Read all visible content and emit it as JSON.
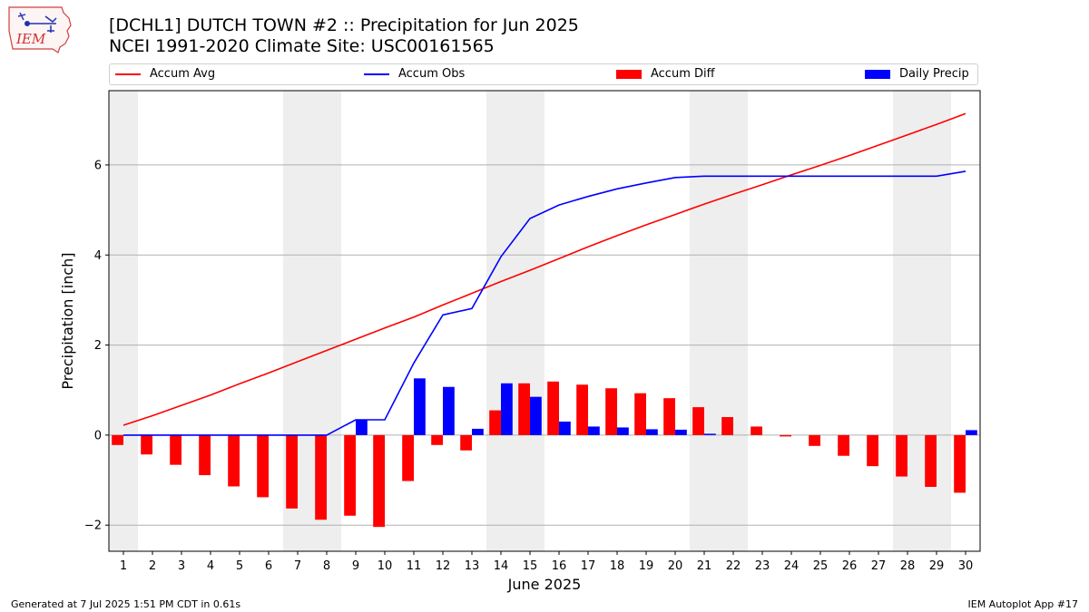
{
  "header": {
    "title_line1": "[DCHL1] DUTCH TOWN #2 :: Precipitation for Jun 2025",
    "title_line2": "NCEI 1991-2020 Climate Site: USC00161565",
    "logo_text": "IEM"
  },
  "footer": {
    "generated": "Generated at 7 Jul 2025 1:51 PM CDT in 0.61s",
    "app": "IEM Autoplot App #17"
  },
  "chart_data": {
    "type": "bar",
    "xlabel": "June 2025",
    "ylabel": "Precipitation [inch]",
    "ylim": [
      -2.58,
      7.65
    ],
    "xlim": [
      0.5,
      30.5
    ],
    "y_ticks": [
      -2,
      0,
      2,
      4,
      6
    ],
    "y_tick_labels": [
      "−2",
      "0",
      "2",
      "4",
      "6"
    ],
    "grid": true,
    "legend_position": "top",
    "categories": [
      1,
      2,
      3,
      4,
      5,
      6,
      7,
      8,
      9,
      10,
      11,
      12,
      13,
      14,
      15,
      16,
      17,
      18,
      19,
      20,
      21,
      22,
      23,
      24,
      25,
      26,
      27,
      28,
      29,
      30
    ],
    "weekend_days": [
      1,
      7,
      8,
      14,
      15,
      21,
      22,
      28,
      29
    ],
    "colors": {
      "accum_avg": "#ff0000",
      "accum_obs": "#0000ff",
      "accum_diff": "#ff0000",
      "daily_precip": "#0000ff",
      "weekend_shade": "#eeeeee",
      "grid": "#b0b0b0"
    },
    "series": [
      {
        "name": "Accum Avg",
        "kind": "line",
        "values": [
          0.22,
          0.43,
          0.66,
          0.89,
          1.14,
          1.38,
          1.63,
          1.88,
          2.13,
          2.38,
          2.62,
          2.89,
          3.15,
          3.41,
          3.66,
          3.92,
          4.18,
          4.43,
          4.67,
          4.9,
          5.13,
          5.35,
          5.56,
          5.78,
          5.99,
          6.21,
          6.44,
          6.67,
          6.9,
          7.14
        ]
      },
      {
        "name": "Accum Obs",
        "kind": "line",
        "values": [
          0,
          0,
          0,
          0,
          0,
          0,
          0,
          0,
          0.34,
          0.34,
          1.6,
          2.67,
          2.81,
          3.96,
          4.81,
          5.11,
          5.3,
          5.47,
          5.6,
          5.72,
          5.75,
          5.75,
          5.75,
          5.75,
          5.75,
          5.75,
          5.75,
          5.75,
          5.75,
          5.86
        ]
      },
      {
        "name": "Accum Diff",
        "kind": "bar",
        "values": [
          -0.22,
          -0.43,
          -0.66,
          -0.89,
          -1.14,
          -1.38,
          -1.63,
          -1.88,
          -1.79,
          -2.04,
          -1.02,
          -0.22,
          -0.34,
          0.55,
          1.15,
          1.19,
          1.12,
          1.04,
          0.93,
          0.82,
          0.62,
          0.4,
          0.19,
          -0.03,
          -0.24,
          -0.46,
          -0.69,
          -0.92,
          -1.15,
          -1.28
        ]
      },
      {
        "name": "Daily Precip",
        "kind": "bar",
        "values": [
          0,
          0,
          0,
          0,
          0,
          0,
          0,
          0,
          0.34,
          0,
          1.26,
          1.07,
          0.14,
          1.15,
          0.85,
          0.3,
          0.19,
          0.17,
          0.13,
          0.12,
          0.03,
          0,
          0,
          0,
          0,
          0,
          0,
          0,
          0,
          0.11
        ]
      }
    ]
  }
}
